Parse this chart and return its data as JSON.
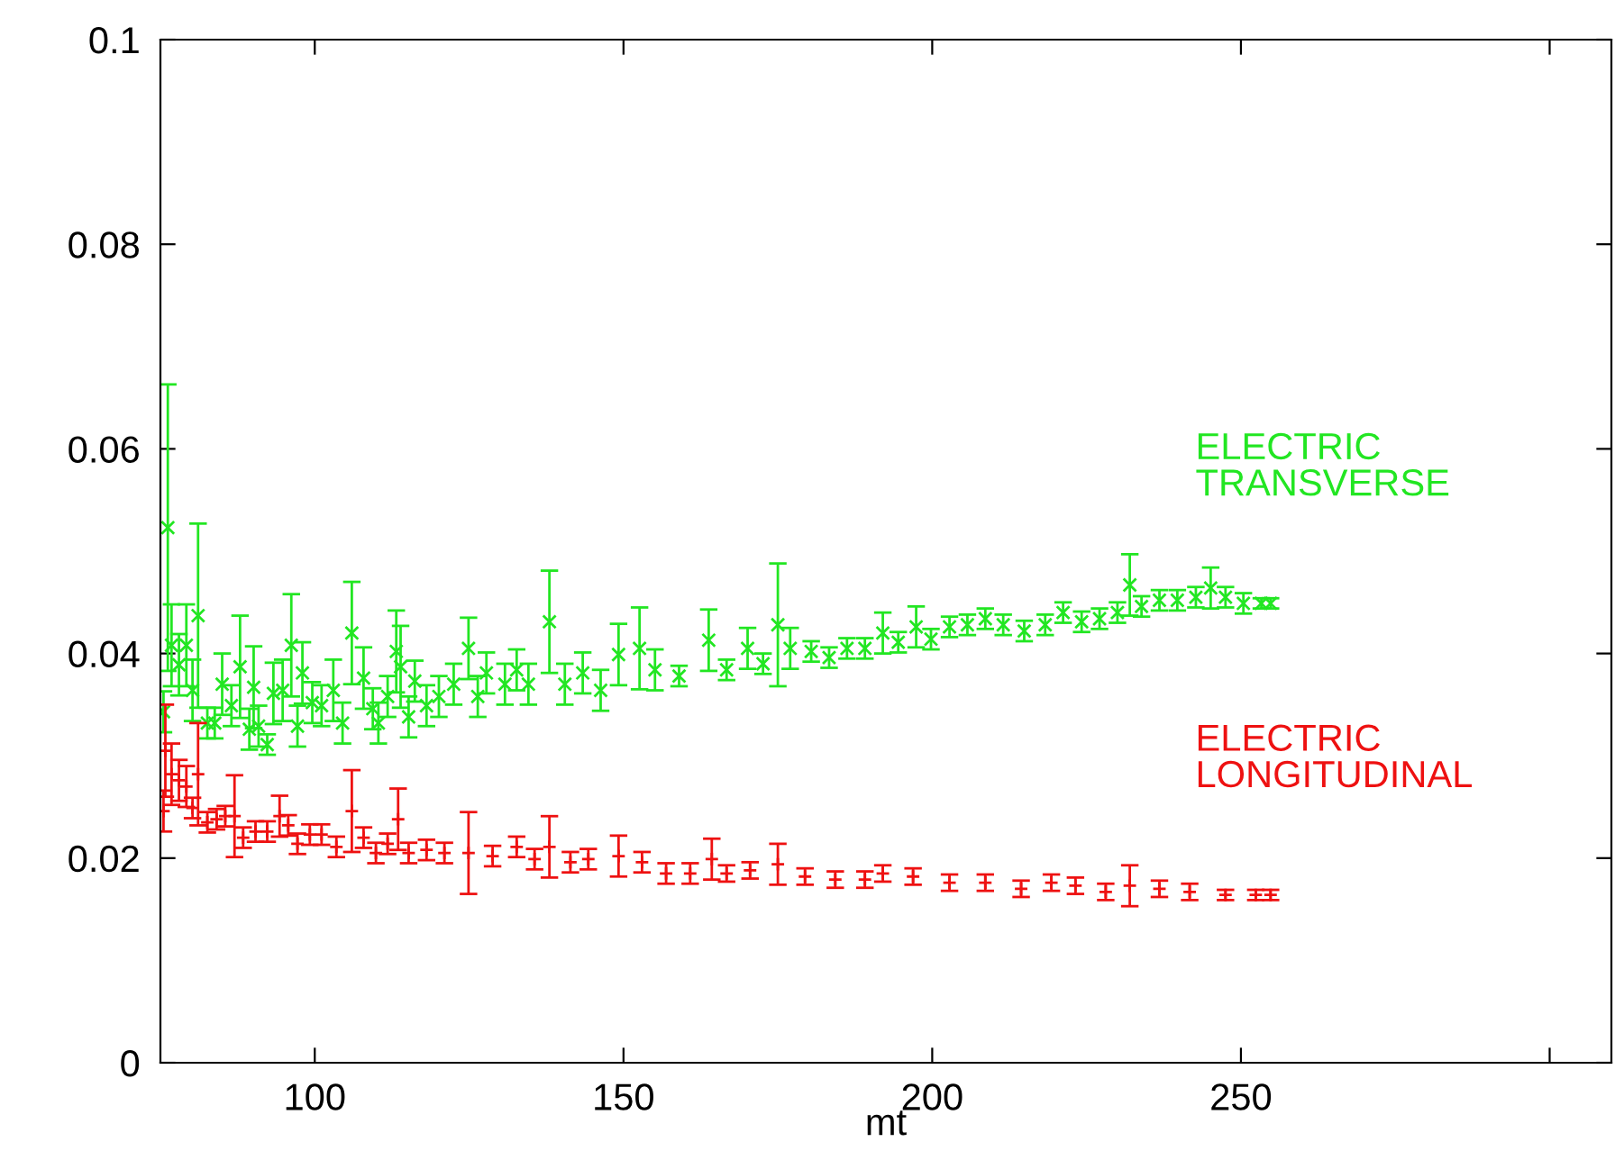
{
  "chart_data": {
    "type": "scatter",
    "xlabel": "mt",
    "xlim": [
      75,
      310
    ],
    "ylim": [
      0,
      0.1
    ],
    "xticks": [
      100,
      150,
      200,
      250,
      {
        "value": 300,
        "label": null
      }
    ],
    "yticks": [
      0,
      0.02,
      0.04,
      0.06,
      0.08,
      0.1
    ],
    "grid": false,
    "legend": false,
    "series": [
      {
        "name": "ELECTRIC\nTRANSVERSE",
        "color": "#22e622",
        "marker": "x",
        "x": [
          75.5,
          76.2,
          76.8,
          78.0,
          79.2,
          80.2,
          81.1,
          82.6,
          83.8,
          85.0,
          86.5,
          87.9,
          89.4,
          90.1,
          90.9,
          92.3,
          93.3,
          94.8,
          96.2,
          97.2,
          98.0,
          99.6,
          101.1,
          103.0,
          104.5,
          106.0,
          107.9,
          109.4,
          110.3,
          111.8,
          113.2,
          113.9,
          115.2,
          116.2,
          118.1,
          120.1,
          122.5,
          124.9,
          126.4,
          127.8,
          130.8,
          132.7,
          134.6,
          138.0,
          140.5,
          143.4,
          146.3,
          149.2,
          152.6,
          155.1,
          159.0,
          163.8,
          166.7,
          170.1,
          172.6,
          175.0,
          177.0,
          180.4,
          183.3,
          186.2,
          189.1,
          192.0,
          194.5,
          197.4,
          199.8,
          202.8,
          205.7,
          208.6,
          211.5,
          214.9,
          218.3,
          221.2,
          224.2,
          227.1,
          230.0,
          232.0,
          233.9,
          236.8,
          239.7,
          242.7,
          245.1,
          247.5,
          250.4,
          253.3,
          254.8
        ],
        "values": [
          0.0343,
          0.0523,
          0.0408,
          0.0389,
          0.0408,
          0.0364,
          0.0437,
          0.0332,
          0.0332,
          0.037,
          0.0349,
          0.0387,
          0.0326,
          0.0367,
          0.0329,
          0.0311,
          0.0361,
          0.0364,
          0.0408,
          0.0329,
          0.0381,
          0.0352,
          0.0349,
          0.0364,
          0.0332,
          0.042,
          0.0376,
          0.0346,
          0.0332,
          0.0358,
          0.0402,
          0.0387,
          0.0338,
          0.0373,
          0.0349,
          0.0358,
          0.037,
          0.0405,
          0.0358,
          0.0381,
          0.037,
          0.0384,
          0.037,
          0.0431,
          0.037,
          0.0381,
          0.0364,
          0.0399,
          0.0405,
          0.0384,
          0.0378,
          0.0413,
          0.0384,
          0.0405,
          0.039,
          0.0428,
          0.0405,
          0.0402,
          0.0396,
          0.0405,
          0.0405,
          0.042,
          0.0411,
          0.0426,
          0.0414,
          0.0426,
          0.0428,
          0.0434,
          0.0428,
          0.0422,
          0.0428,
          0.044,
          0.0431,
          0.0434,
          0.044,
          0.0467,
          0.0446,
          0.0452,
          0.0452,
          0.0455,
          0.0464,
          0.0455,
          0.0449,
          0.0449,
          0.0449
        ],
        "errors": [
          0.002,
          0.014,
          0.004,
          0.003,
          0.004,
          0.003,
          0.009,
          0.0015,
          0.0015,
          0.003,
          0.002,
          0.005,
          0.002,
          0.004,
          0.002,
          0.001,
          0.003,
          0.003,
          0.005,
          0.002,
          0.003,
          0.002,
          0.002,
          0.003,
          0.002,
          0.005,
          0.003,
          0.002,
          0.002,
          0.002,
          0.004,
          0.004,
          0.002,
          0.002,
          0.002,
          0.002,
          0.002,
          0.003,
          0.002,
          0.002,
          0.002,
          0.002,
          0.002,
          0.005,
          0.002,
          0.002,
          0.002,
          0.003,
          0.004,
          0.002,
          0.001,
          0.003,
          0.001,
          0.002,
          0.001,
          0.006,
          0.002,
          0.001,
          0.001,
          0.001,
          0.001,
          0.002,
          0.001,
          0.002,
          0.001,
          0.001,
          0.001,
          0.001,
          0.001,
          0.001,
          0.001,
          0.001,
          0.001,
          0.001,
          0.001,
          0.003,
          0.001,
          0.001,
          0.001,
          0.001,
          0.002,
          0.001,
          0.001,
          0.0005,
          0.0005
        ]
      },
      {
        "name": "ELECTRIC\nLONGITUDINAL",
        "color": "#ee1111",
        "marker": "cross",
        "x": [
          75.5,
          75.8,
          76.8,
          78.0,
          79.2,
          80.2,
          81.1,
          82.6,
          84.1,
          85.5,
          87.0,
          88.4,
          90.4,
          92.3,
          94.3,
          95.7,
          97.2,
          99.2,
          101.1,
          103.5,
          106.0,
          107.9,
          109.9,
          111.8,
          113.5,
          115.2,
          118.1,
          121.0,
          124.9,
          128.8,
          132.7,
          135.6,
          138.0,
          141.4,
          144.3,
          149.2,
          153.0,
          156.9,
          160.8,
          164.3,
          166.7,
          170.5,
          175.0,
          179.4,
          184.3,
          189.1,
          192.0,
          196.9,
          202.8,
          208.6,
          214.4,
          219.3,
          223.2,
          228.1,
          232.0,
          236.8,
          241.7,
          247.5,
          252.4,
          254.8
        ],
        "values": [
          0.0246,
          0.0305,
          0.0282,
          0.0276,
          0.027,
          0.0249,
          0.0282,
          0.0235,
          0.0238,
          0.0241,
          0.0241,
          0.022,
          0.0226,
          0.0226,
          0.0241,
          0.0232,
          0.0214,
          0.0223,
          0.0223,
          0.0211,
          0.0246,
          0.022,
          0.0205,
          0.0214,
          0.0238,
          0.0205,
          0.0208,
          0.0205,
          0.0205,
          0.0202,
          0.0211,
          0.0199,
          0.0211,
          0.0196,
          0.0199,
          0.0202,
          0.0196,
          0.0185,
          0.0185,
          0.0199,
          0.0185,
          0.0188,
          0.0194,
          0.0182,
          0.0179,
          0.0179,
          0.0185,
          0.0182,
          0.0176,
          0.0176,
          0.017,
          0.0176,
          0.0173,
          0.0167,
          0.0173,
          0.017,
          0.0167,
          0.0164,
          0.0164,
          0.0164
        ],
        "errors": [
          0.002,
          0.0045,
          0.003,
          0.002,
          0.002,
          0.001,
          0.005,
          0.001,
          0.001,
          0.001,
          0.004,
          0.001,
          0.001,
          0.001,
          0.002,
          0.001,
          0.001,
          0.001,
          0.001,
          0.001,
          0.004,
          0.001,
          0.001,
          0.001,
          0.003,
          0.001,
          0.001,
          0.001,
          0.004,
          0.001,
          0.001,
          0.001,
          0.003,
          0.001,
          0.001,
          0.002,
          0.001,
          0.001,
          0.001,
          0.002,
          0.0008,
          0.0008,
          0.002,
          0.0008,
          0.0008,
          0.0008,
          0.0008,
          0.0008,
          0.0008,
          0.0008,
          0.0008,
          0.0008,
          0.0008,
          0.0008,
          0.002,
          0.0008,
          0.0008,
          0.0005,
          0.0005,
          0.0005
        ]
      }
    ]
  }
}
